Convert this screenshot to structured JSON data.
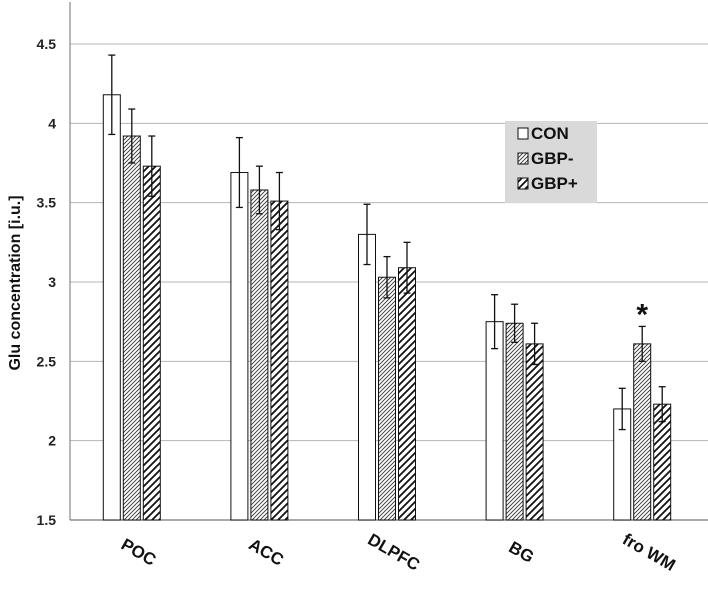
{
  "chart_data": {
    "type": "bar",
    "ylabel": "Glu concentration [i.u.]",
    "ylim": [
      1.5,
      4.5
    ],
    "yticks": [
      "1.5",
      "2",
      "2.5",
      "3",
      "3.5",
      "4",
      "4.5"
    ],
    "grid": true,
    "legend_position": "upper-right, inside plot",
    "categories": [
      "POC",
      "ACC",
      "DLPFC",
      "BG",
      "fro WM"
    ],
    "series": [
      {
        "name": "CON",
        "pattern": "open",
        "values": [
          4.18,
          3.69,
          3.3,
          2.75,
          2.2
        ],
        "errors": [
          0.25,
          0.22,
          0.19,
          0.17,
          0.13
        ]
      },
      {
        "name": "GBP-",
        "pattern": "dense-hatched",
        "values": [
          3.92,
          3.58,
          3.03,
          2.74,
          2.61
        ],
        "errors": [
          0.17,
          0.15,
          0.13,
          0.12,
          0.11
        ]
      },
      {
        "name": "GBP+",
        "pattern": "wide-hatched",
        "values": [
          3.73,
          3.51,
          3.09,
          2.61,
          2.23
        ],
        "errors": [
          0.19,
          0.18,
          0.16,
          0.13,
          0.11
        ]
      }
    ],
    "annotations": [
      {
        "text": "*",
        "category": "fro WM",
        "series": "GBP-"
      }
    ]
  }
}
